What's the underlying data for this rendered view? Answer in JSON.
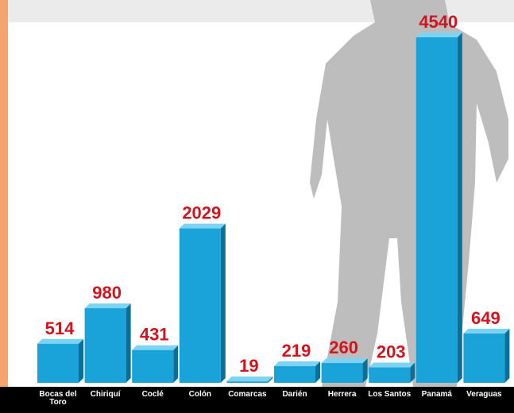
{
  "chart_data": {
    "type": "bar",
    "categories": [
      "Bocas del Toro",
      "Chiriquí",
      "Coclé",
      "Colón",
      "Comarcas",
      "Darién",
      "Herrera",
      "Los Santos",
      "Panamá",
      "Veraguas"
    ],
    "values": [
      514,
      980,
      431,
      2029,
      19,
      219,
      260,
      203,
      4540,
      649
    ],
    "color": "#1aa3d8"
  }
}
